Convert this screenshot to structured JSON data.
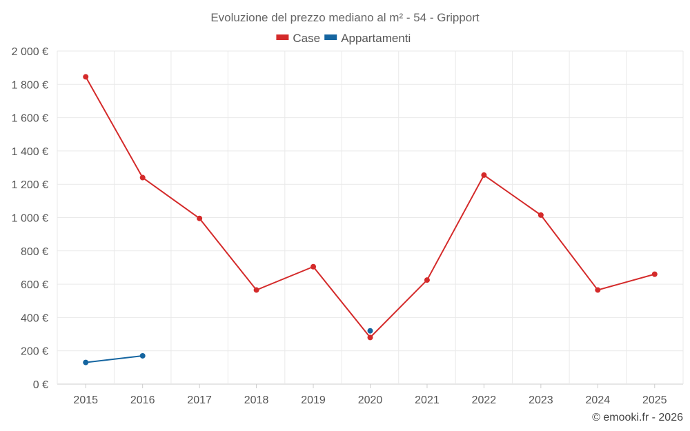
{
  "chart_data": {
    "type": "line",
    "title": "Evoluzione del prezzo mediano al m² - 54 - Gripport",
    "categories": [
      "2015",
      "2016",
      "2017",
      "2018",
      "2019",
      "2020",
      "2021",
      "2022",
      "2023",
      "2024",
      "2025"
    ],
    "ylim": [
      0,
      2000
    ],
    "yticks": [
      0,
      200,
      400,
      600,
      800,
      1000,
      1200,
      1400,
      1600,
      1800,
      2000
    ],
    "ytick_labels": [
      "0 €",
      "200 €",
      "400 €",
      "600 €",
      "800 €",
      "1 000 €",
      "1 200 €",
      "1 400 €",
      "1 600 €",
      "1 800 €",
      "2 000 €"
    ],
    "grid": true,
    "legend_position": "top-center",
    "series": [
      {
        "name": "Case",
        "color": "#d42a2a",
        "values": [
          1845,
          1240,
          995,
          565,
          705,
          280,
          625,
          1255,
          1015,
          565,
          660
        ]
      },
      {
        "name": "Appartamenti",
        "color": "#1565a0",
        "values": [
          130,
          170,
          null,
          null,
          null,
          320,
          null,
          null,
          null,
          null,
          null
        ]
      }
    ]
  },
  "credit": "© emooki.fr - 2026"
}
